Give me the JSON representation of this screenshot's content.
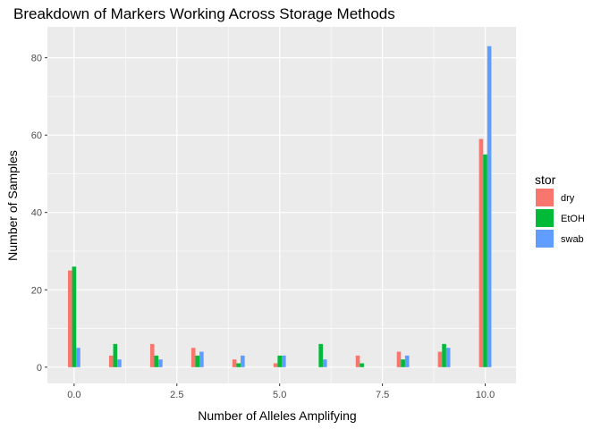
{
  "chart_data": {
    "type": "bar",
    "title": "Breakdown of Markers Working Across Storage Methods",
    "xlabel": "Number of Alleles Amplifying",
    "ylabel": "Number of Samples",
    "x": [
      0,
      1,
      2,
      3,
      4,
      5,
      6,
      7,
      8,
      9,
      10
    ],
    "x_ticks": [
      0.0,
      2.5,
      5.0,
      7.5,
      10.0
    ],
    "x_tick_labels": [
      "0.0",
      "2.5",
      "5.0",
      "7.5",
      "10.0"
    ],
    "y_ticks": [
      0,
      20,
      40,
      60,
      80
    ],
    "y_tick_labels": [
      "0",
      "20",
      "40",
      "60",
      "80"
    ],
    "xlim": [
      -0.65,
      10.75
    ],
    "ylim": [
      -4.2,
      88
    ],
    "grid": true,
    "legend_title": "stor",
    "legend_position": "right",
    "series": [
      {
        "name": "dry",
        "color": "#F8766D",
        "values": [
          25,
          3,
          6,
          5,
          2,
          1,
          0,
          3,
          4,
          4,
          59
        ]
      },
      {
        "name": "EtOH",
        "color": "#00BA38",
        "values": [
          26,
          6,
          3,
          3,
          1,
          3,
          6,
          1,
          2,
          6,
          55
        ]
      },
      {
        "name": "swab",
        "color": "#619CFF",
        "values": [
          5,
          2,
          2,
          4,
          3,
          3,
          2,
          0,
          3,
          5,
          83
        ]
      }
    ]
  }
}
